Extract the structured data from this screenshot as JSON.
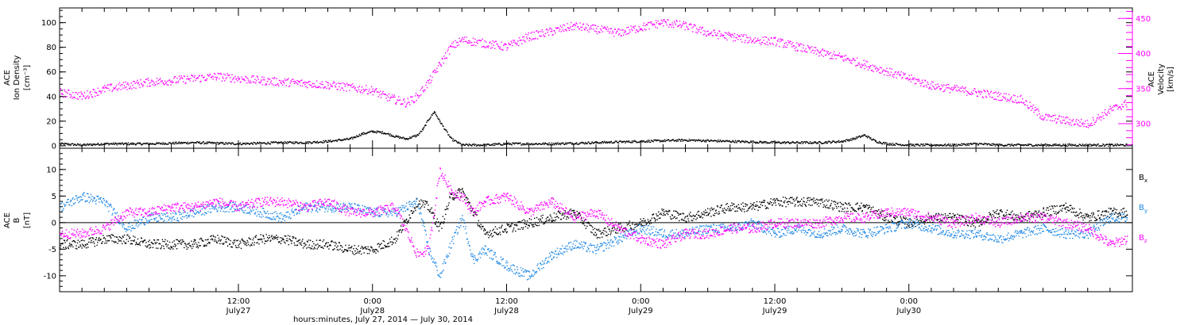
{
  "chart_data": [
    {
      "type": "scatter",
      "panel": "top",
      "ylabel_left": [
        "ACE",
        "Ion Density",
        "[cm⁻³]"
      ],
      "ylabel_right": [
        "ACE",
        "Velocity",
        "[km/s]"
      ],
      "x_unit": "hours since 2014-07-27 00:00",
      "xlim": [
        -4,
        92
      ],
      "left_axis": {
        "ylim": [
          -2,
          112
        ],
        "ticks": [
          0,
          20,
          40,
          60,
          80,
          100
        ],
        "tick_labels": [
          "0",
          "20",
          "40",
          "60",
          "80",
          "100"
        ]
      },
      "right_axis": {
        "ylim": [
          265,
          465
        ],
        "ticks": [
          300,
          350,
          400,
          450
        ],
        "tick_labels": [
          "300",
          "350",
          "400",
          "450"
        ]
      },
      "series": [
        {
          "color": "#000000",
          "axis": "left",
          "x": [
            -4,
            -2,
            0,
            4,
            8,
            12,
            16,
            18,
            20,
            22,
            23,
            24,
            25,
            26,
            27,
            28,
            28.5,
            29,
            29.5,
            30,
            31,
            32,
            34,
            36,
            40,
            44,
            48,
            52,
            56,
            60,
            64,
            66,
            67,
            68,
            69,
            70,
            72,
            74,
            76,
            78,
            80,
            82,
            84,
            85,
            86,
            88,
            90,
            91.5
          ],
          "y": [
            2,
            1,
            2,
            2,
            3,
            2,
            3,
            3,
            4,
            6,
            10,
            12,
            11,
            8,
            6,
            9,
            14,
            22,
            28,
            20,
            6,
            1,
            1,
            2,
            2,
            3,
            4,
            5,
            4,
            3,
            3,
            4,
            6,
            9,
            4,
            2,
            1,
            1,
            1,
            2,
            1,
            1,
            1,
            1,
            1,
            1,
            1,
            1
          ]
        },
        {
          "color": "#ff00ff",
          "axis": "right",
          "x": [
            -4,
            -2,
            0,
            2,
            4,
            6,
            8,
            10,
            12,
            14,
            16,
            18,
            20,
            22,
            24,
            25,
            26,
            27,
            28,
            29,
            30,
            31,
            32,
            34,
            36,
            38,
            40,
            42,
            44,
            46,
            48,
            50,
            52,
            54,
            56,
            58,
            60,
            62,
            64,
            66,
            68,
            70,
            72,
            74,
            76,
            78,
            80,
            82,
            84,
            86,
            88,
            90,
            91.5
          ],
          "y": [
            345,
            340,
            350,
            355,
            360,
            362,
            365,
            368,
            365,
            362,
            360,
            358,
            356,
            352,
            348,
            340,
            335,
            330,
            340,
            360,
            385,
            410,
            420,
            415,
            410,
            425,
            432,
            440,
            435,
            430,
            438,
            445,
            440,
            430,
            425,
            420,
            418,
            410,
            402,
            395,
            385,
            375,
            365,
            355,
            350,
            345,
            340,
            335,
            310,
            305,
            300,
            320,
            330
          ]
        }
      ]
    },
    {
      "type": "scatter",
      "panel": "bottom",
      "ylabel_left": [
        "ACE",
        "B",
        "[nT]"
      ],
      "x_unit": "hours since 2014-07-27 00:00",
      "xlim": [
        -4,
        92
      ],
      "ylim": [
        -13,
        14
      ],
      "ticks": [
        -10,
        -5,
        0,
        5,
        10
      ],
      "tick_labels": [
        "-10",
        "-5",
        "0",
        "5",
        "10"
      ],
      "zero_line": true,
      "legend": [
        "Bx",
        "By",
        "Bz"
      ],
      "series": [
        {
          "name": "Bx",
          "color": "#000000",
          "x": [
            -4,
            -2,
            0,
            2,
            4,
            6,
            8,
            10,
            12,
            14,
            16,
            18,
            20,
            22,
            24,
            26,
            28,
            29,
            30,
            31,
            32,
            33,
            34,
            36,
            38,
            40,
            42,
            44,
            46,
            48,
            50,
            52,
            54,
            56,
            58,
            60,
            62,
            64,
            66,
            68,
            70,
            72,
            74,
            76,
            78,
            80,
            82,
            84,
            86,
            88,
            90,
            91.5
          ],
          "y": [
            -4,
            -4,
            -3,
            -3,
            -4,
            -4,
            -4,
            -3,
            -4,
            -3,
            -3,
            -4,
            -4,
            -5,
            -5,
            -3,
            4,
            3,
            -1,
            5,
            6,
            2,
            -2,
            -1,
            0,
            1,
            2,
            -2,
            -1,
            0,
            2,
            1,
            2,
            3,
            3,
            4,
            4,
            4,
            3,
            3,
            1,
            0,
            1,
            1,
            0,
            2,
            1,
            2,
            3,
            1,
            2,
            2
          ]
        },
        {
          "name": "By",
          "color": "#1e88e5",
          "x": [
            -4,
            -2,
            0,
            2,
            4,
            6,
            8,
            10,
            12,
            14,
            16,
            18,
            20,
            22,
            24,
            26,
            28,
            29,
            30,
            31,
            32,
            33,
            34,
            36,
            38,
            40,
            42,
            44,
            46,
            48,
            50,
            52,
            54,
            56,
            58,
            60,
            62,
            64,
            66,
            68,
            70,
            72,
            74,
            76,
            78,
            80,
            82,
            84,
            86,
            88,
            90,
            91.5
          ],
          "y": [
            3,
            5,
            4,
            -1,
            1,
            1,
            2,
            3,
            3,
            2,
            1,
            3,
            3,
            3,
            2,
            2,
            4,
            -5,
            -10,
            -4,
            1,
            -7,
            -5,
            -8,
            -10,
            -6,
            -4,
            -5,
            -3,
            -1,
            -2,
            -2,
            -1,
            -1,
            0,
            -2,
            -1,
            -2,
            -1,
            -2,
            -1,
            0,
            -1,
            -2,
            -2,
            -3,
            -2,
            -1,
            -2,
            -2,
            1,
            1
          ]
        },
        {
          "name": "Bz",
          "color": "#ff00ff",
          "x": [
            -4,
            -2,
            0,
            2,
            4,
            6,
            8,
            10,
            12,
            14,
            16,
            18,
            20,
            22,
            24,
            26,
            28,
            29,
            30,
            31,
            32,
            33,
            34,
            36,
            38,
            40,
            42,
            44,
            46,
            48,
            50,
            52,
            54,
            56,
            58,
            60,
            62,
            64,
            66,
            68,
            70,
            72,
            74,
            76,
            78,
            80,
            82,
            84,
            86,
            88,
            90,
            91.5
          ],
          "y": [
            -2,
            -2,
            -1,
            2,
            2,
            3,
            3,
            4,
            3,
            4,
            4,
            3,
            4,
            2,
            2,
            3,
            -6,
            -5,
            10,
            6,
            5,
            2,
            4,
            5,
            2,
            4,
            1,
            2,
            -1,
            -3,
            -4,
            -2,
            -2,
            -1,
            -1,
            0,
            0,
            0,
            1,
            1,
            2,
            2,
            1,
            0,
            1,
            0,
            1,
            1,
            0,
            -1,
            -4,
            -3
          ]
        }
      ]
    }
  ],
  "x_axis": {
    "tick_hours": [
      12,
      24,
      36,
      48,
      60,
      72
    ],
    "tick_labels_time": [
      "12:00",
      "0:00",
      "12:00",
      "0:00",
      "12:00",
      "0:00"
    ],
    "tick_labels_date": [
      "July27",
      "July28",
      "July28",
      "July29",
      "July29",
      "July30"
    ],
    "xlabel": "hours:minutes, July 27, 2014 — July 30, 2014"
  }
}
